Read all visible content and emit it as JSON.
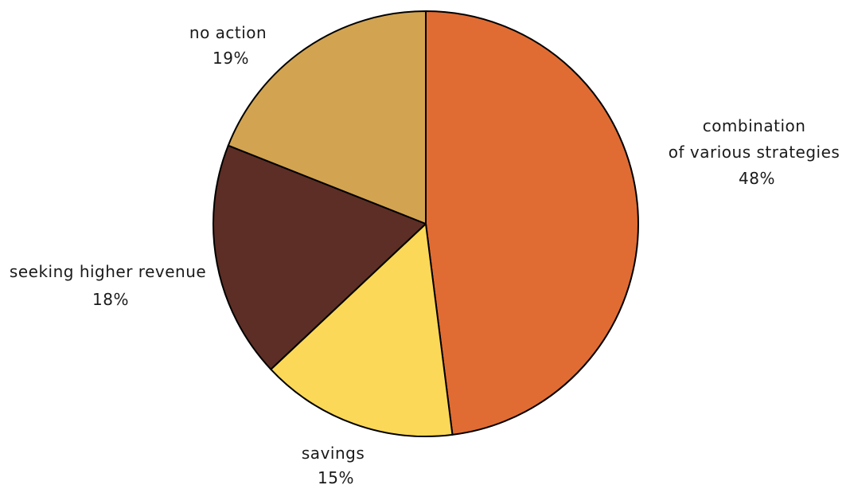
{
  "chart_data": {
    "type": "pie",
    "title": "",
    "start_angle_deg": 0,
    "direction": "clockwise",
    "slices": [
      {
        "lines": [
          "combination",
          "of various strategies"
        ],
        "value": 48,
        "value_label": "48%",
        "color": "#E06C33"
      },
      {
        "lines": [
          "savings"
        ],
        "value": 15,
        "value_label": "15%",
        "color": "#FBD857"
      },
      {
        "lines": [
          "seeking higher revenue"
        ],
        "value": 18,
        "value_label": "18%",
        "color": "#5D2E25"
      },
      {
        "lines": [
          "no action"
        ],
        "value": 19,
        "value_label": "19%",
        "color": "#D2A451"
      }
    ]
  }
}
